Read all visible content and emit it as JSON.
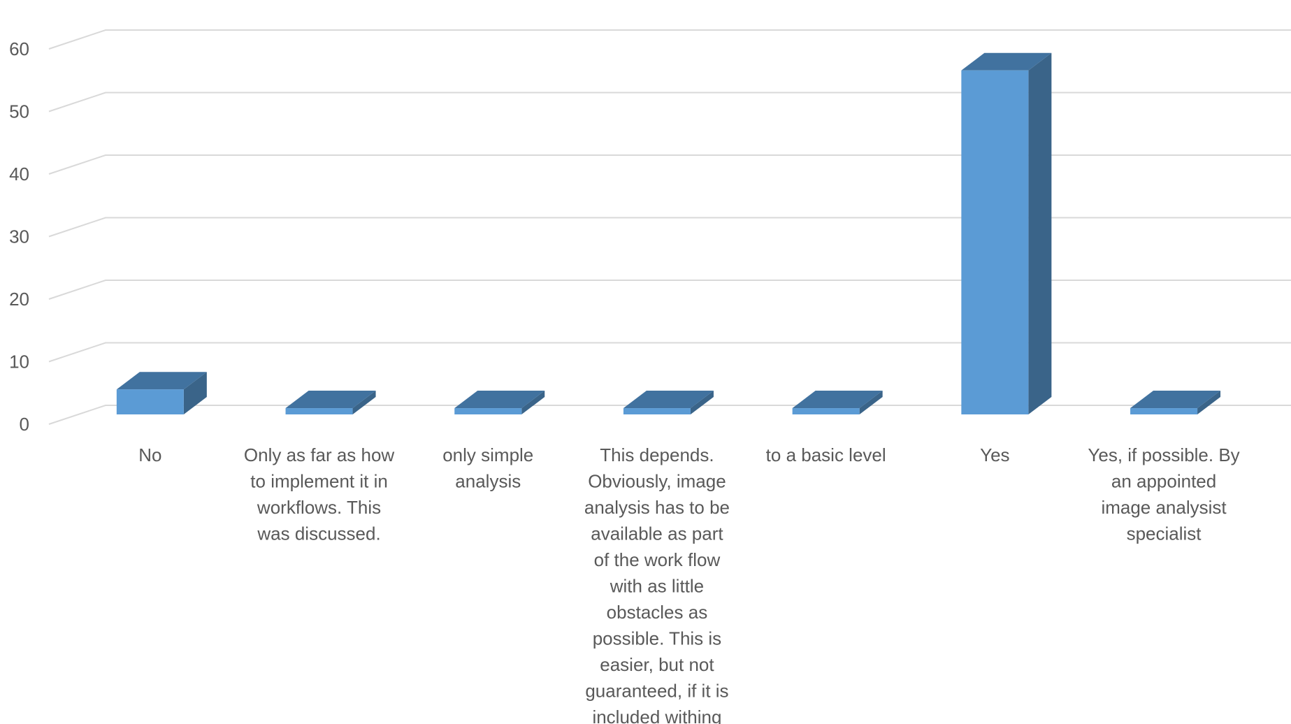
{
  "chart_data": {
    "type": "bar",
    "style": "3d-column",
    "categories": [
      "No",
      "Only as far as how to implement it in workflows. This was discussed.",
      "only simple analysis",
      "This depends. Obviously, image analysis has to be available as part of the work flow with as little obstacles as possible. This is easier, but not guaranteed, if it is included withing",
      "to a basic level",
      "Yes",
      "Yes, if possible. By an appointed image analysist specialist"
    ],
    "category_lines": [
      [
        "No"
      ],
      [
        "Only as far as how",
        "to implement it in",
        "workflows. This",
        "was discussed."
      ],
      [
        "only simple",
        "analysis"
      ],
      [
        "This depends.",
        "Obviously, image",
        "analysis has to be",
        "available as part",
        "of the work flow",
        "with as little",
        "obstacles as",
        "possible. This is",
        "easier, but not",
        "guaranteed, if it is",
        "included withing"
      ],
      [
        "to a basic level"
      ],
      [
        "Yes"
      ],
      [
        "Yes, if possible. By",
        "an appointed",
        "image analysist",
        "specialist"
      ]
    ],
    "values": [
      4,
      1,
      1,
      1,
      1,
      55,
      1
    ],
    "ylim": [
      0,
      60
    ],
    "yticks": [
      "0",
      "10",
      "20",
      "30",
      "40",
      "50",
      "60"
    ],
    "grid": true,
    "legend": "none",
    "title": "",
    "xlabel": "",
    "ylabel": "",
    "colors": {
      "bar_front": "#5b9bd5",
      "bar_top": "#41729f",
      "bar_side": "#3a6489",
      "grid": "#d9d9d9",
      "tick_text": "#595959"
    }
  }
}
